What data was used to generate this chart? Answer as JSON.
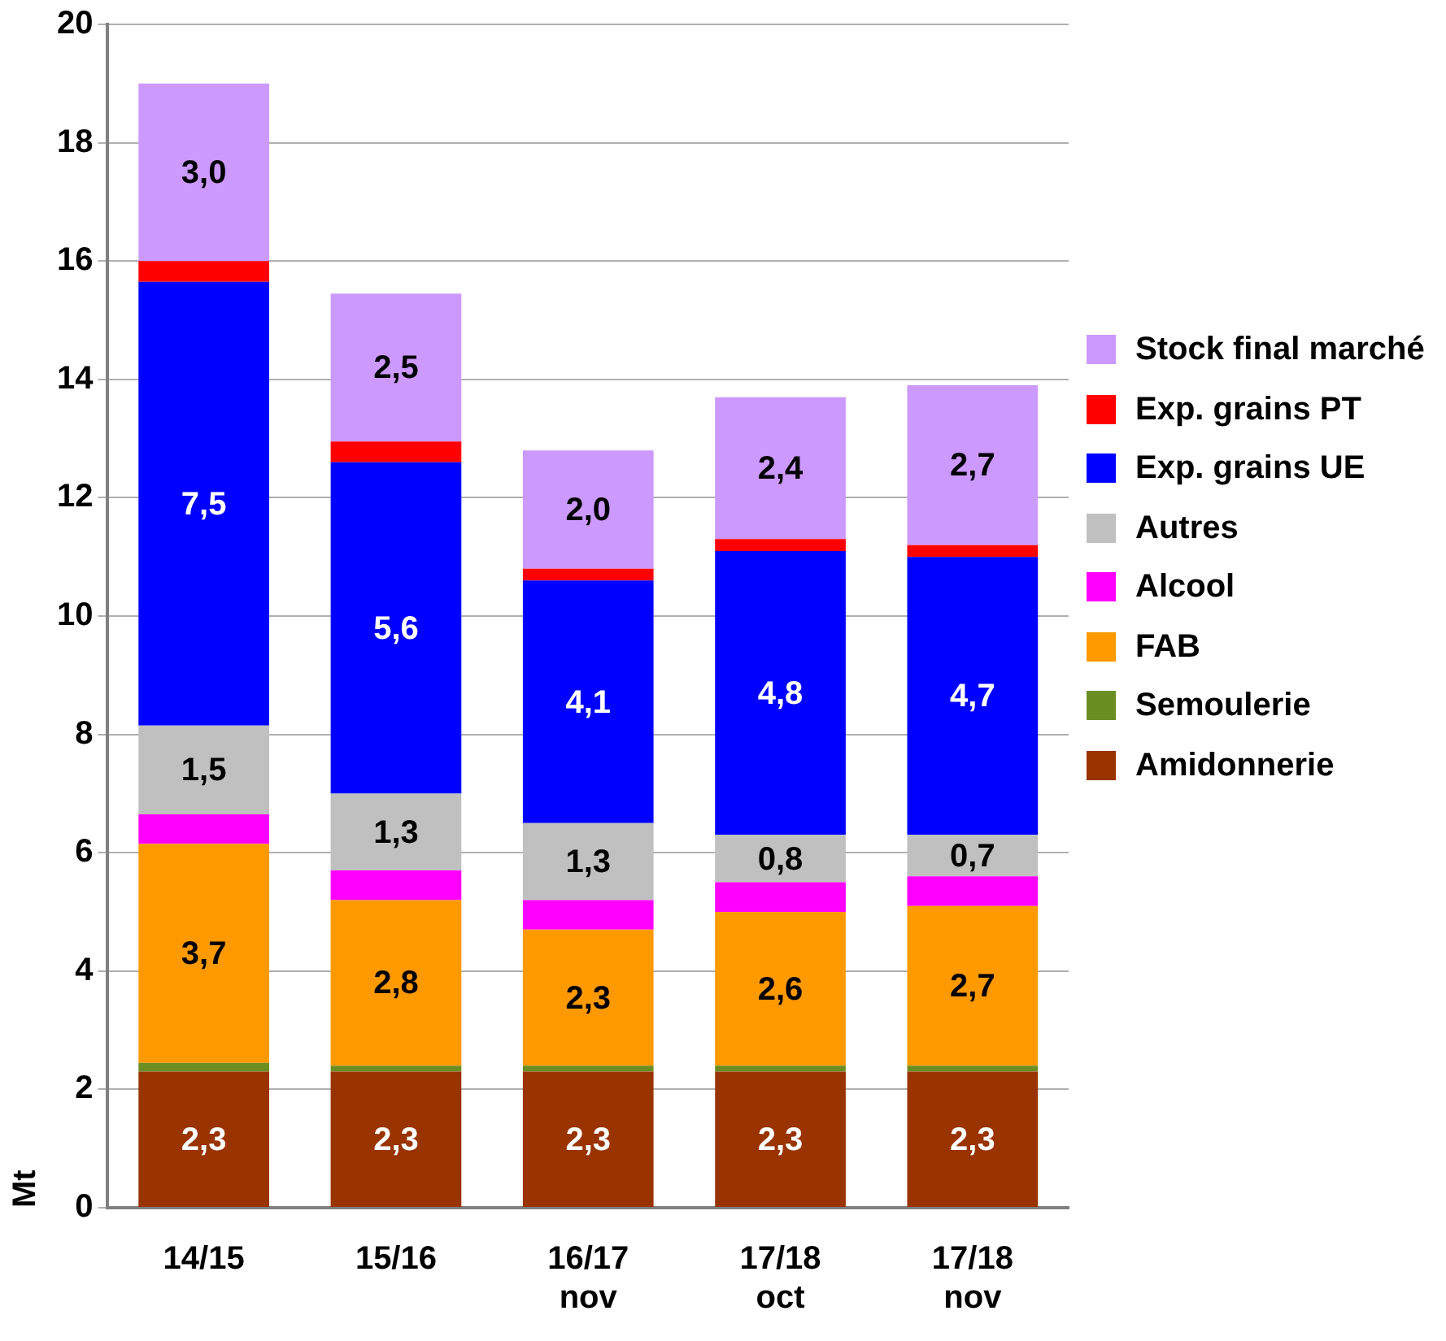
{
  "chart_data": {
    "type": "bar",
    "stacked": true,
    "ylabel": "Mt",
    "categories": [
      "14/15",
      "15/16",
      "16/17 nov",
      "17/18 oct",
      "17/18 nov"
    ],
    "series": [
      {
        "name": "Amidonnerie",
        "color": "#993300",
        "values": [
          2.3,
          2.3,
          2.3,
          2.3,
          2.3
        ],
        "value_labels": [
          "2,3",
          "2,3",
          "2,3",
          "2,3",
          "2,3"
        ]
      },
      {
        "name": "Semoulerie",
        "color": "#6b8e23",
        "values": [
          0.15,
          0.1,
          0.1,
          0.1,
          0.1
        ],
        "value_labels": [
          null,
          null,
          null,
          null,
          null
        ]
      },
      {
        "name": "FAB",
        "color": "#ff9900",
        "values": [
          3.7,
          2.8,
          2.3,
          2.6,
          2.7
        ],
        "value_labels": [
          "3,7",
          "2,8",
          "2,3",
          "2,6",
          "2,7"
        ]
      },
      {
        "name": "Alcool",
        "color": "#ff00ff",
        "values": [
          0.5,
          0.5,
          0.5,
          0.5,
          0.5
        ],
        "value_labels": [
          null,
          null,
          null,
          null,
          null
        ]
      },
      {
        "name": "Autres",
        "color": "#c0c0c0",
        "values": [
          1.5,
          1.3,
          1.3,
          0.8,
          0.7
        ],
        "value_labels": [
          "1,5",
          "1,3",
          "1,3",
          "0,8",
          "0,7"
        ]
      },
      {
        "name": "Exp. grains UE",
        "color": "#0000ff",
        "values": [
          7.5,
          5.6,
          4.1,
          4.8,
          4.7
        ],
        "value_labels": [
          "7,5",
          "5,6",
          "4,1",
          "4,8",
          "4,7"
        ]
      },
      {
        "name": "Exp. grains PT",
        "color": "#ff0000",
        "values": [
          0.35,
          0.35,
          0.2,
          0.2,
          0.2
        ],
        "value_labels": [
          null,
          null,
          null,
          null,
          null
        ]
      },
      {
        "name": "Stock final marché",
        "color": "#cc99ff",
        "values": [
          3.0,
          2.5,
          2.0,
          2.4,
          2.7
        ],
        "value_labels": [
          "3,0",
          "2,5",
          "2,0",
          "2,4",
          "2,7"
        ]
      }
    ],
    "ylim": [
      0,
      20
    ],
    "yticks": [
      0,
      2,
      4,
      6,
      8,
      10,
      12,
      14,
      16,
      18,
      20
    ],
    "grid": "y",
    "legend": "right"
  }
}
